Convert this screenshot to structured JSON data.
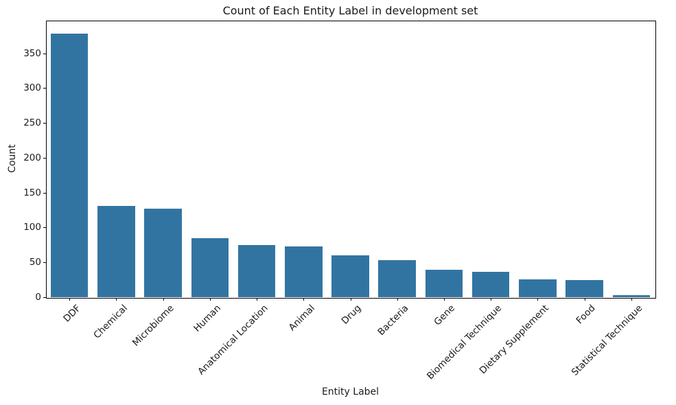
{
  "figure": {
    "background": "#ffffff",
    "spine_color": "#000000",
    "text_color": "#1a1a1a"
  },
  "chart_data": {
    "type": "bar",
    "title": "Count of Each Entity Label in development set",
    "xlabel": "Entity Label",
    "ylabel": "Count",
    "categories": [
      "DDF",
      "Chemical",
      "Microbiome",
      "Human",
      "Anatomical Location",
      "Animal",
      "Drug",
      "Bacteria",
      "Gene",
      "Biomedical Technique",
      "Dietary Supplement",
      "Food",
      "Statistical Technique"
    ],
    "values": [
      378,
      131,
      127,
      85,
      75,
      73,
      60,
      53,
      39,
      36,
      26,
      25,
      3
    ],
    "bar_color": "#3274a1",
    "ylim": [
      0,
      396.9
    ],
    "yticks": [
      0,
      50,
      100,
      150,
      200,
      250,
      300,
      350
    ],
    "x_tick_rotation_deg": 45,
    "grid": false,
    "legend_position": "none"
  }
}
